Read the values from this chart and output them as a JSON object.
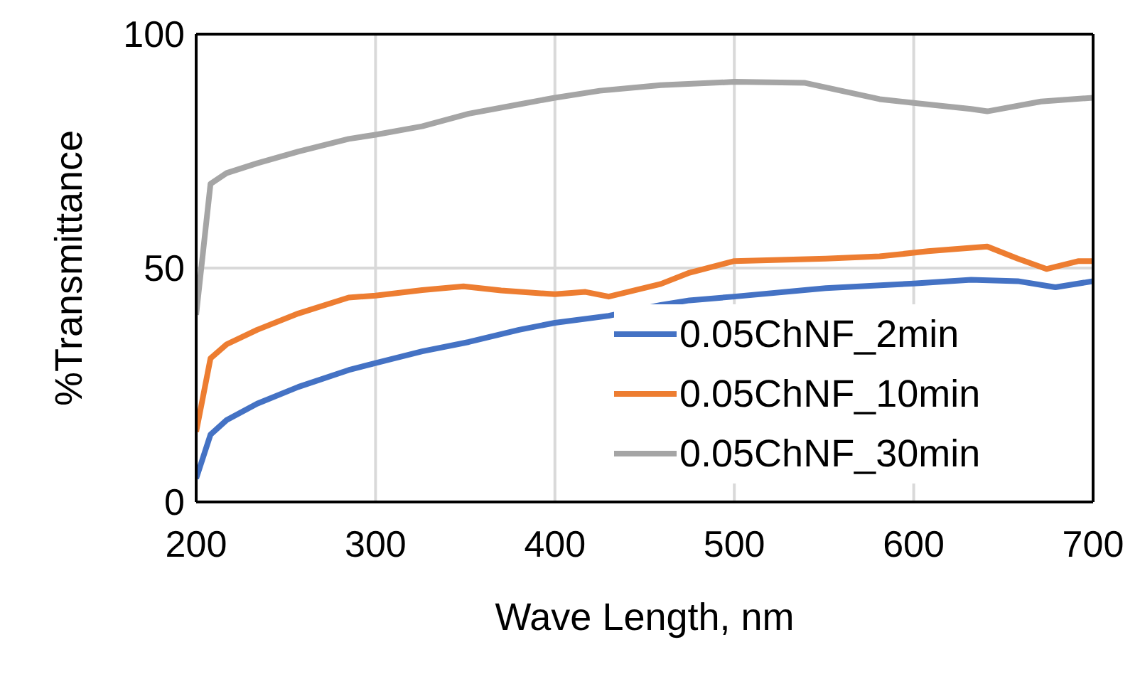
{
  "chart_data": {
    "type": "line",
    "xlabel": "Wave Length, nm",
    "ylabel": "%Transmittance",
    "xlim": [
      200,
      700
    ],
    "xticks": [
      200,
      300,
      400,
      500,
      600,
      700
    ],
    "ylim": [
      0,
      100
    ],
    "yticks": [
      0,
      50,
      100
    ],
    "grid": true,
    "legend": "bottom right",
    "marker": "none",
    "line_style": "solid",
    "series": [
      {
        "name": "0.05ChNF_2min",
        "color": "#4472c4",
        "x": [
          200,
          208,
          217,
          234,
          257,
          285,
          300,
          326,
          352,
          380,
          400,
          430,
          459,
          475,
          500,
          551,
          600,
          632,
          658,
          679,
          700
        ],
        "values": [
          5,
          14.4,
          17.5,
          21,
          24.6,
          28.2,
          29.7,
          32.2,
          34.2,
          36.8,
          38.3,
          39.8,
          42.1,
          43.1,
          43.9,
          45.7,
          46.7,
          47.5,
          47.2,
          45.9,
          47.2
        ]
      },
      {
        "name": "0.05ChNF_10min",
        "color": "#ed7d31",
        "x": [
          200,
          208,
          217,
          234,
          257,
          285,
          300,
          326,
          349,
          370,
          400,
          417,
          430,
          459,
          475,
          500,
          551,
          581,
          608,
          641,
          658,
          674,
          692,
          700
        ],
        "values": [
          15,
          30.7,
          33.7,
          36.8,
          40.3,
          43.7,
          44.1,
          45.3,
          46.1,
          45.2,
          44.4,
          44.9,
          43.9,
          46.6,
          49,
          51.5,
          52,
          52.5,
          53.6,
          54.6,
          52,
          49.8,
          51.5,
          51.5
        ]
      },
      {
        "name": "0.05ChNF_30min",
        "color": "#a5a5a5",
        "x": [
          200,
          208,
          217,
          234,
          257,
          285,
          300,
          326,
          352,
          380,
          400,
          425,
          459,
          500,
          539,
          581,
          600,
          632,
          641,
          671,
          700
        ],
        "values": [
          40,
          68,
          70.3,
          72.4,
          74.9,
          77.6,
          78.5,
          80.3,
          83,
          85,
          86.4,
          87.9,
          89.1,
          89.8,
          89.6,
          86.1,
          85.3,
          84,
          83.5,
          85.6,
          86.4
        ]
      }
    ]
  }
}
